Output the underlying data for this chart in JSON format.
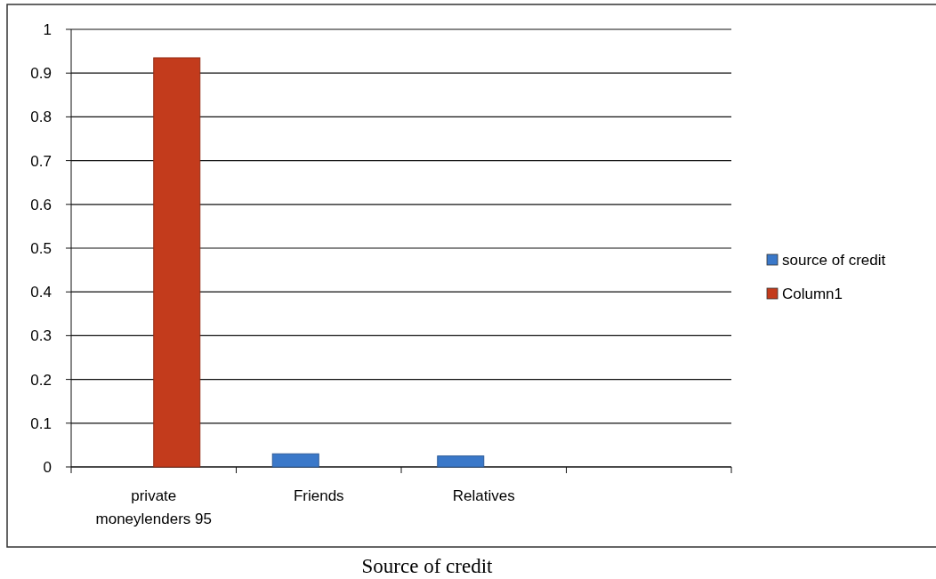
{
  "chart_data": {
    "type": "bar",
    "xlabel": "Source of credit",
    "categories": [
      "private moneylenders 95",
      "Friends",
      "Relatives",
      null
    ],
    "series": [
      {
        "name": "source of credit",
        "color": "#3a78c9",
        "values": [
          null,
          0.03,
          0.025,
          null
        ]
      },
      {
        "name": "Column1",
        "color": "#c33b1c",
        "values": [
          0.935,
          null,
          null,
          null
        ]
      }
    ],
    "ylim": [
      0,
      1
    ],
    "yticks": [
      0,
      0.1,
      0.2,
      0.3,
      0.4,
      0.5,
      0.6,
      0.7,
      0.8,
      0.9,
      1
    ],
    "grid": "y",
    "legend": "right"
  }
}
